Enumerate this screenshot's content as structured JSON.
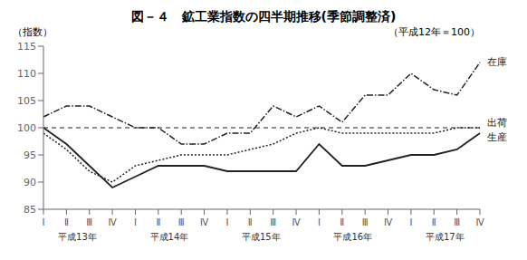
{
  "chart_data": {
    "type": "line",
    "title": "図－４　鉱工業指数の四半期推移(季節調整済)",
    "subtitle": "（平成12年＝100）",
    "ylabel": "（指数）",
    "categories": [
      "Ⅰ",
      "Ⅱ",
      "Ⅲ",
      "Ⅳ",
      "Ⅰ",
      "Ⅱ",
      "Ⅲ",
      "Ⅳ",
      "Ⅰ",
      "Ⅱ",
      "Ⅲ",
      "Ⅳ",
      "Ⅰ",
      "Ⅱ",
      "Ⅲ",
      "Ⅳ",
      "Ⅰ",
      "Ⅱ",
      "Ⅲ",
      "Ⅳ"
    ],
    "category_groups": [
      "平成13年",
      "平成14年",
      "平成15年",
      "平成16年",
      "平成17年"
    ],
    "color": "#222222",
    "series": [
      {
        "name": "生産",
        "line_style": "solid",
        "values": [
          100,
          97,
          93,
          89,
          91,
          93,
          93,
          93,
          92,
          92,
          92,
          92,
          97,
          93,
          93,
          94,
          95,
          95,
          96,
          99
        ]
      },
      {
        "name": "出荷",
        "line_style": "dotted",
        "values": [
          99,
          96,
          92,
          90,
          93,
          94,
          95,
          95,
          95,
          96,
          97,
          99,
          100,
          99,
          99,
          99,
          99,
          99,
          100,
          100
        ]
      },
      {
        "name": "在庫",
        "line_style": "dashdot",
        "values": [
          102,
          104,
          104,
          102,
          100,
          100,
          97,
          97,
          99,
          99,
          104,
          102,
          104,
          101,
          106,
          106,
          110,
          107,
          106,
          112
        ]
      }
    ],
    "reference_line": 100,
    "ylim": [
      85,
      115
    ],
    "yticks": [
      85,
      90,
      95,
      100,
      105,
      110,
      115
    ],
    "grid": false
  }
}
